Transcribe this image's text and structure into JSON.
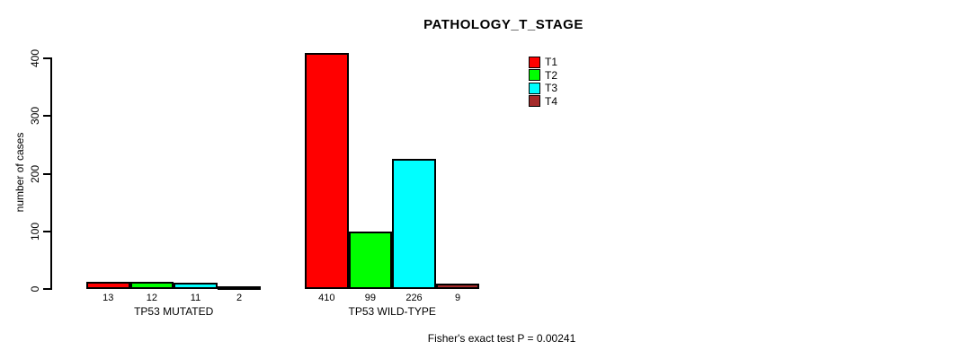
{
  "title": "PATHOLOGY_T_STAGE",
  "annotation": "Fisher's exact test P = 0.00241",
  "chart_data": {
    "type": "bar",
    "grouped": true,
    "title": "PATHOLOGY_T_STAGE",
    "categories": [
      "TP53 MUTATED",
      "TP53 WILD-TYPE"
    ],
    "series": [
      {
        "name": "T1",
        "color": "#ff0000",
        "values": [
          13,
          410
        ]
      },
      {
        "name": "T2",
        "color": "#00ff00",
        "values": [
          12,
          99
        ]
      },
      {
        "name": "T3",
        "color": "#00ffff",
        "values": [
          11,
          226
        ]
      },
      {
        "name": "T4",
        "color": "#a52a2a",
        "values": [
          2,
          9
        ]
      }
    ],
    "xlabel": "",
    "ylabel": "number of cases",
    "ylim": [
      0,
      400
    ],
    "yticks": [
      0,
      100,
      200,
      300,
      400
    ],
    "bar_value_labels": true,
    "grid": false,
    "legend_position": "top-right",
    "annotation": "Fisher's exact test P = 0.00241",
    "axis_color": "#000000",
    "bar_border_color": "#000000"
  }
}
